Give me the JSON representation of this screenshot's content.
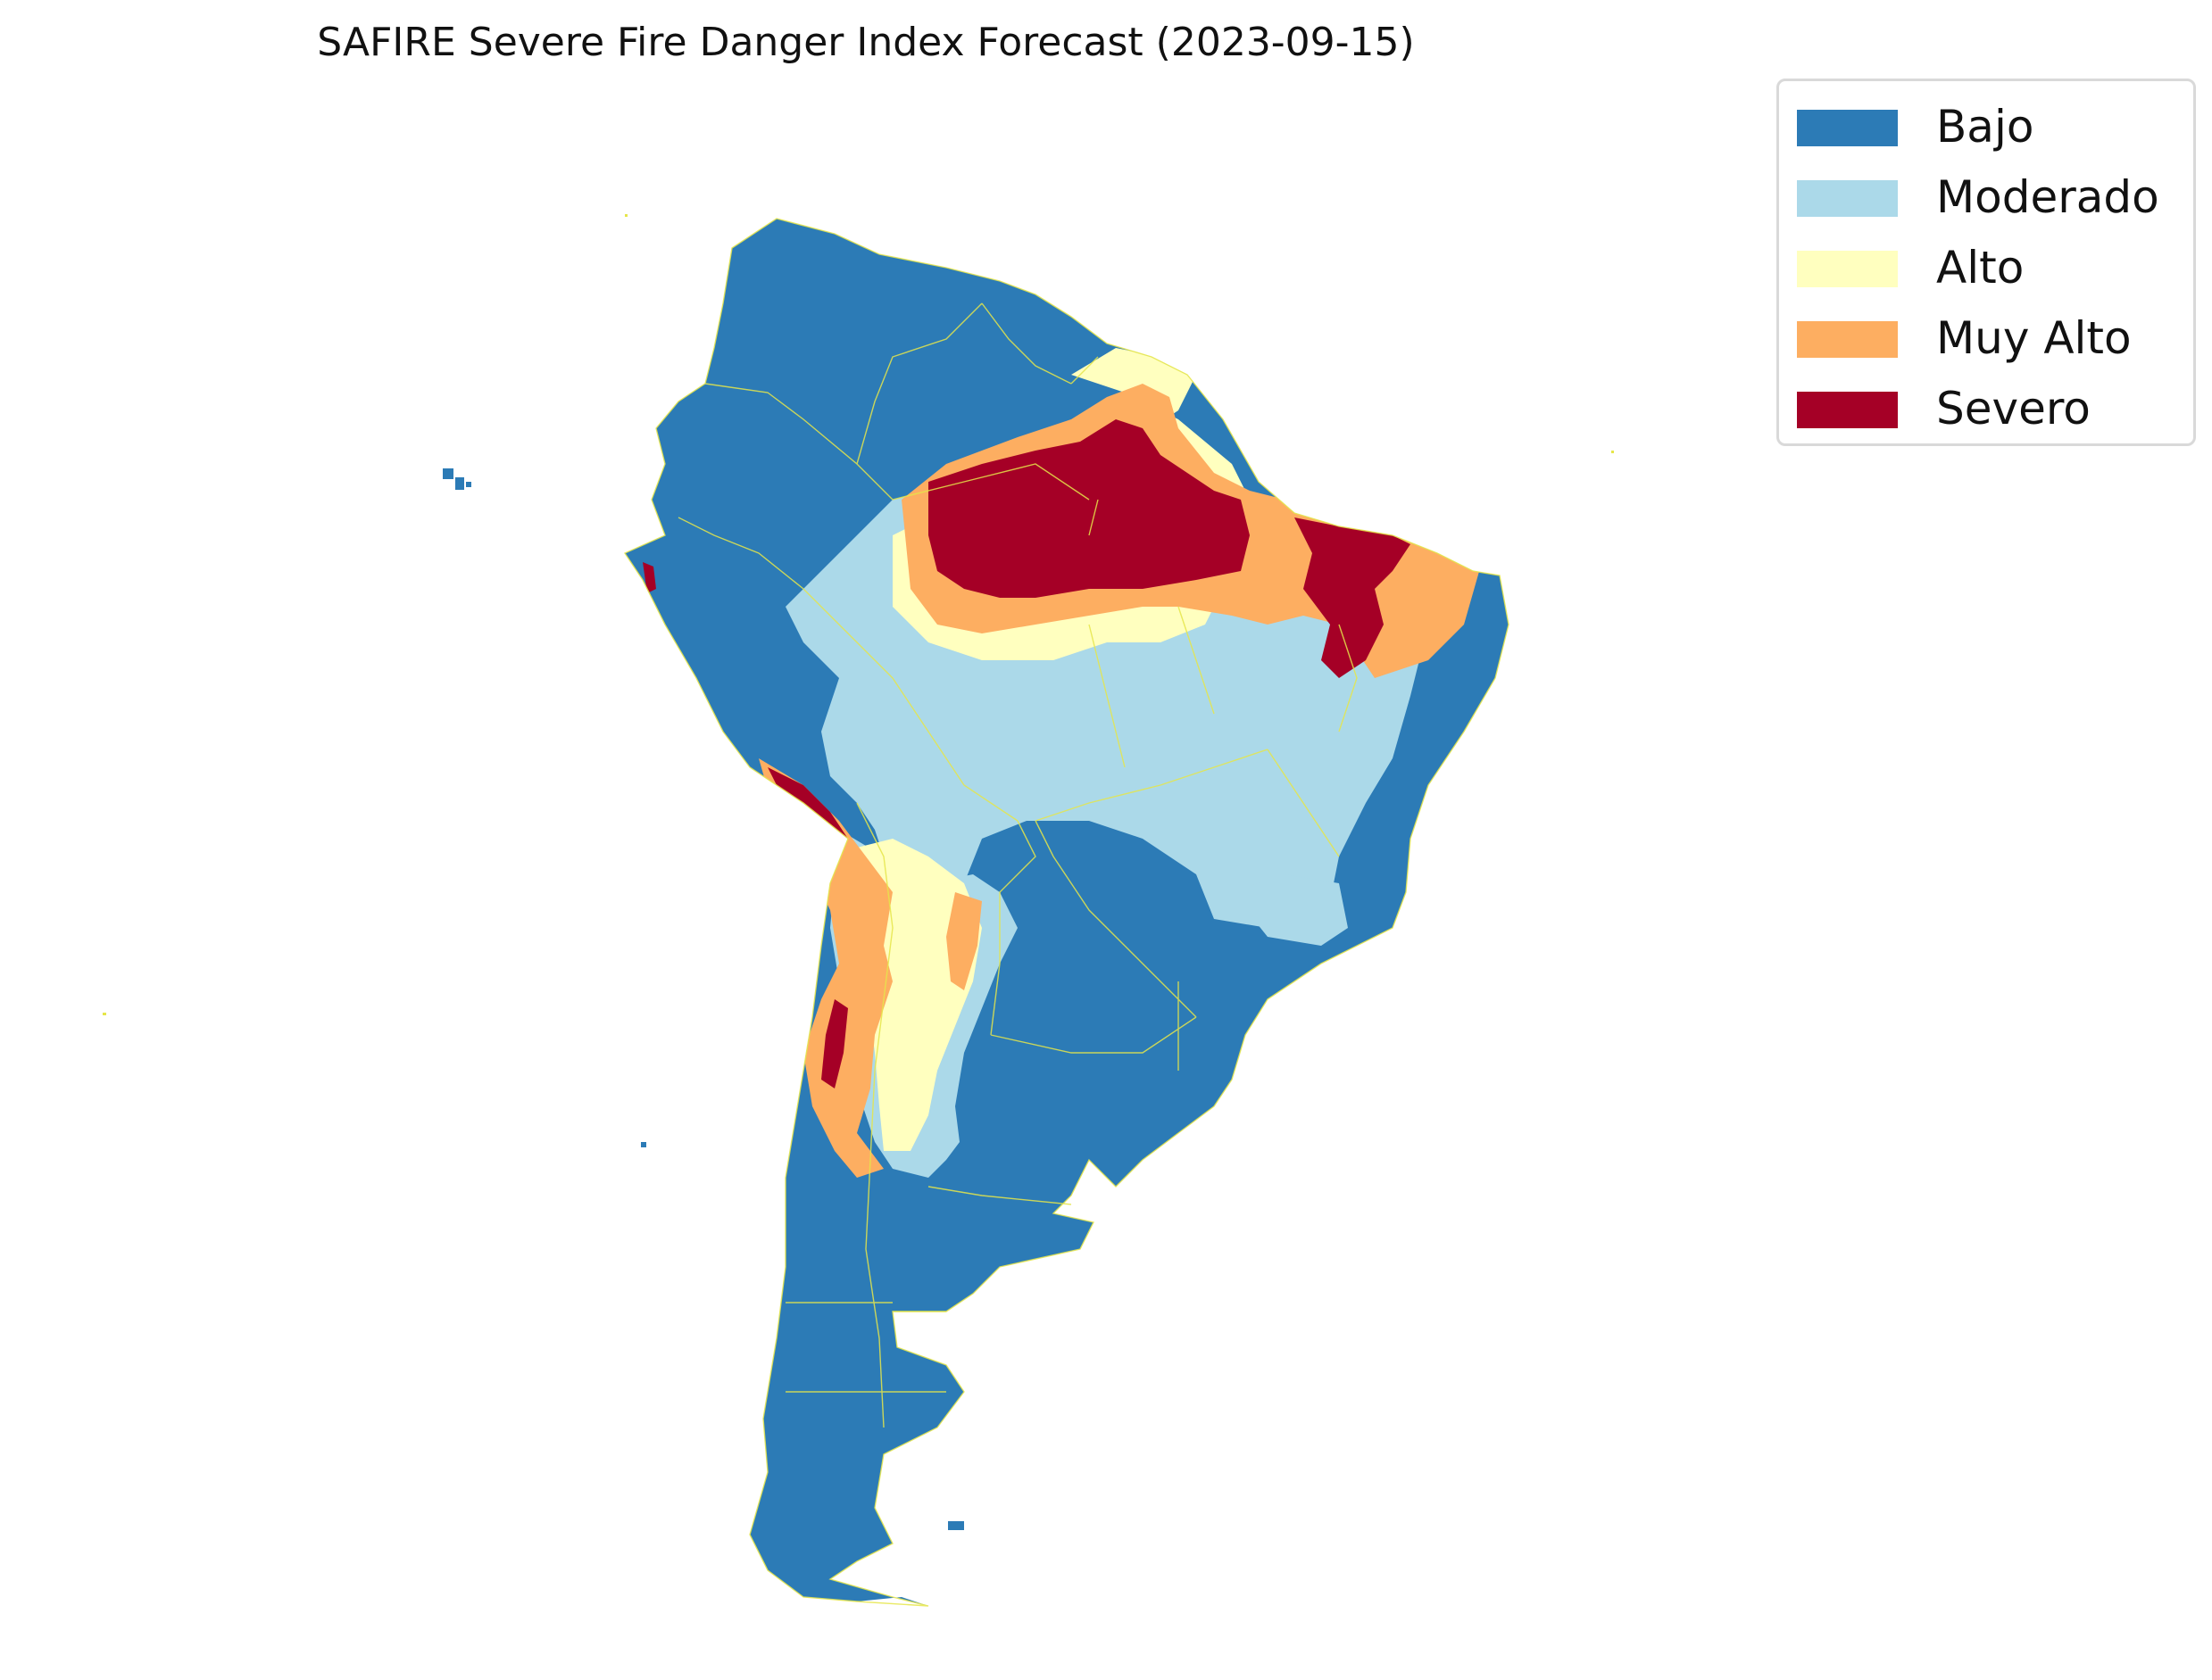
{
  "map": {
    "title": "SAFIRE Severe Fire Danger Index Forecast (2023-09-15)"
  },
  "legend": {
    "items": [
      {
        "label": "Bajo",
        "color": "#2c7bb6"
      },
      {
        "label": "Moderado",
        "color": "#abd9e9"
      },
      {
        "label": "Alto",
        "color": "#ffffbf"
      },
      {
        "label": "Muy Alto",
        "color": "#fdae61"
      },
      {
        "label": "Severo",
        "color": "#a50026"
      }
    ]
  },
  "colors": {
    "background": "#ffffff",
    "boundaries": "#e6e64a"
  }
}
